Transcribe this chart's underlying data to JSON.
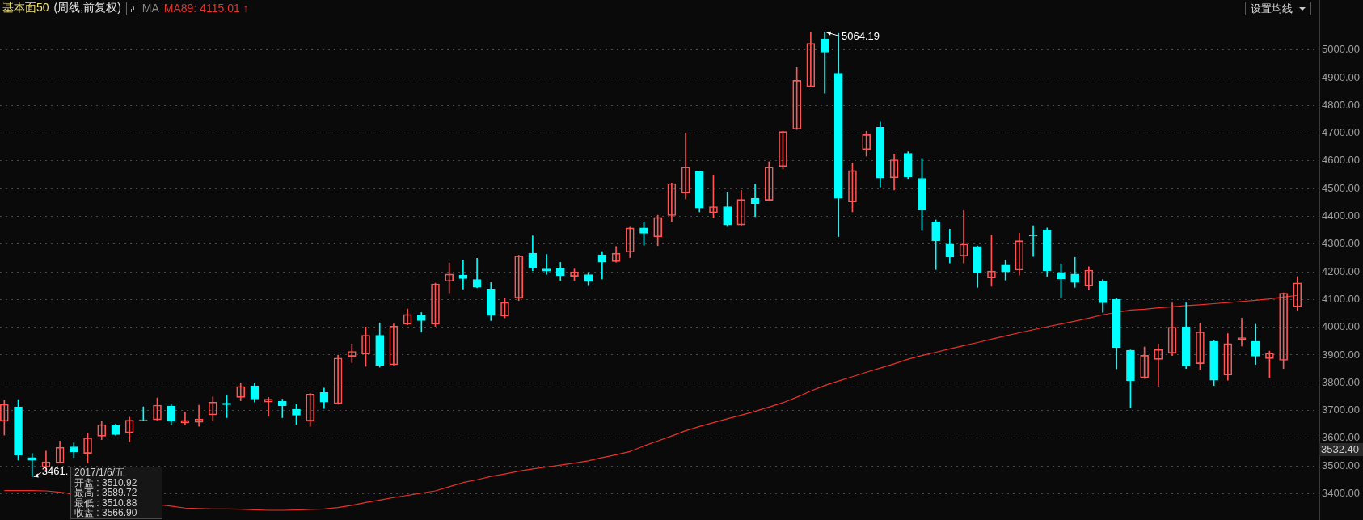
{
  "chart_data": {
    "type": "candlestick",
    "title": "基本面50",
    "subtitle": "(周线,前复权)",
    "legend_title": "MA",
    "legend": "top left",
    "grid": "y",
    "tick_labels": "y",
    "categories": [
      null,
      null,
      null,
      null,
      null,
      null,
      null,
      null,
      null,
      null,
      null,
      null,
      null,
      null,
      null,
      null,
      null,
      null,
      null,
      null,
      null,
      null,
      null,
      null,
      null,
      null,
      null,
      null,
      null,
      null,
      null,
      null,
      null,
      null,
      null,
      null,
      null,
      null,
      null,
      null,
      null,
      null,
      null,
      null,
      null,
      null,
      null,
      null,
      null,
      null,
      null,
      null,
      null,
      null,
      null,
      null,
      null,
      null,
      null,
      null,
      null,
      null,
      null,
      null,
      null,
      null,
      null,
      null,
      null,
      null,
      null,
      null,
      null,
      null,
      null,
      null,
      null,
      null,
      null,
      null,
      null,
      null,
      null,
      null,
      null,
      null,
      null,
      null,
      null,
      null,
      null,
      null,
      null,
      null
    ],
    "ohlc": [
      [
        3661,
        3737,
        3611,
        3722
      ],
      [
        3713,
        3739,
        3521,
        3539
      ],
      [
        3530,
        3545,
        3461,
        3520
      ],
      [
        3496,
        3553,
        3479,
        3515
      ],
      [
        3510.92,
        3589.72,
        3510.88,
        3566.9
      ],
      [
        3569,
        3583,
        3530,
        3551
      ],
      [
        3545,
        3617,
        3511,
        3601
      ],
      [
        3607,
        3661,
        3595,
        3649
      ],
      [
        3648,
        3650,
        3611,
        3613
      ],
      [
        3620,
        3676,
        3587,
        3665
      ],
      [
        3666,
        3713,
        3664,
        3665
      ],
      [
        3666,
        3745,
        3664,
        3719
      ],
      [
        3716,
        3721,
        3649,
        3662
      ],
      [
        3655,
        3695,
        3650,
        3664
      ],
      [
        3657,
        3719,
        3643,
        3669
      ],
      [
        3684,
        3749,
        3662,
        3730
      ],
      [
        3726,
        3755,
        3674,
        3721
      ],
      [
        3747,
        3800,
        3735,
        3787
      ],
      [
        3789,
        3800,
        3730,
        3741
      ],
      [
        3730,
        3747,
        3680,
        3741
      ],
      [
        3733,
        3741,
        3674,
        3717
      ],
      [
        3704,
        3721,
        3650,
        3683
      ],
      [
        3662,
        3762,
        3643,
        3759
      ],
      [
        3765,
        3781,
        3707,
        3730
      ],
      [
        3725,
        3900,
        3722,
        3889
      ],
      [
        3895,
        3940,
        3873,
        3913
      ],
      [
        3904,
        4001,
        3859,
        3971
      ],
      [
        3971,
        4016,
        3856,
        3862
      ],
      [
        3865,
        4012,
        3864,
        4004
      ],
      [
        4011,
        4066,
        4009,
        4046
      ],
      [
        4044,
        4053,
        3982,
        4024
      ],
      [
        4011,
        4159,
        4003,
        4156
      ],
      [
        4166,
        4232,
        4124,
        4192
      ],
      [
        4188,
        4242,
        4138,
        4176
      ],
      [
        4172,
        4249,
        4142,
        4144
      ],
      [
        4138,
        4161,
        4024,
        4042
      ],
      [
        4040,
        4105,
        4034,
        4090
      ],
      [
        4105,
        4260,
        4096,
        4257
      ],
      [
        4267,
        4330,
        4204,
        4215
      ],
      [
        4210,
        4263,
        4191,
        4203
      ],
      [
        4214,
        4234,
        4168,
        4186
      ],
      [
        4184,
        4210,
        4168,
        4200
      ],
      [
        4190,
        4198,
        4150,
        4165
      ],
      [
        4261,
        4273,
        4174,
        4235
      ],
      [
        4237,
        4291,
        4235,
        4267
      ],
      [
        4271,
        4361,
        4251,
        4358
      ],
      [
        4358,
        4380,
        4296,
        4339
      ],
      [
        4326,
        4404,
        4294,
        4396
      ],
      [
        4403,
        4520,
        4382,
        4518
      ],
      [
        4484,
        4701,
        4463,
        4577
      ],
      [
        4561,
        4563,
        4416,
        4430
      ],
      [
        4413,
        4549,
        4395,
        4435
      ],
      [
        4435,
        4485,
        4363,
        4369
      ],
      [
        4369,
        4494,
        4367,
        4461
      ],
      [
        4465,
        4516,
        4399,
        4446
      ],
      [
        4458,
        4597,
        4456,
        4577
      ],
      [
        4580,
        4707,
        4571,
        4706
      ],
      [
        4715,
        4937,
        4713,
        4890
      ],
      [
        4868,
        5063,
        4866,
        5024
      ],
      [
        5040,
        5064.19,
        4844,
        4992
      ],
      [
        4916,
        5060,
        4327,
        4465
      ],
      [
        4452,
        4593,
        4416,
        4565
      ],
      [
        4641,
        4707,
        4617,
        4695
      ],
      [
        4721,
        4740,
        4506,
        4538
      ],
      [
        4539,
        4625,
        4495,
        4604
      ],
      [
        4627,
        4633,
        4536,
        4542
      ],
      [
        4537,
        4609,
        4349,
        4422
      ],
      [
        4380,
        4387,
        4208,
        4311
      ],
      [
        4300,
        4354,
        4232,
        4253
      ],
      [
        4257,
        4421,
        4232,
        4300
      ],
      [
        4291,
        4293,
        4144,
        4197
      ],
      [
        4178,
        4332,
        4148,
        4203
      ],
      [
        4224,
        4242,
        4170,
        4200
      ],
      [
        4206,
        4339,
        4188,
        4312
      ],
      [
        4331,
        4366,
        4255,
        4329
      ],
      [
        4351,
        4358,
        4184,
        4204
      ],
      [
        4198,
        4228,
        4108,
        4174
      ],
      [
        4192,
        4252,
        4144,
        4162
      ],
      [
        4149,
        4218,
        4136,
        4206
      ],
      [
        4164,
        4172,
        4054,
        4088
      ],
      [
        4100,
        4105,
        3850,
        3926
      ],
      [
        3917,
        3918,
        3710,
        3807
      ],
      [
        3818,
        3929,
        3815,
        3899
      ],
      [
        3884,
        3940,
        3787,
        3920
      ],
      [
        3907,
        4088,
        3898,
        4000
      ],
      [
        4002,
        4088,
        3851,
        3861
      ],
      [
        3869,
        4015,
        3848,
        3983
      ],
      [
        3949,
        3953,
        3790,
        3809
      ],
      [
        3827,
        3977,
        3809,
        3941
      ],
      [
        3955,
        4033,
        3932,
        3962
      ],
      [
        3949,
        4011,
        3866,
        3896
      ],
      [
        3887,
        3914,
        3818,
        3907
      ],
      [
        3881,
        4124,
        3851,
        4123
      ],
      [
        4074,
        4183,
        4061,
        4160
      ]
    ],
    "colors": [
      "#ff5555",
      "#00ffff",
      "#00ffff",
      "#ff5555",
      "#ff5555",
      "#00ffff",
      "#ff5555",
      "#ff5555",
      "#00ffff",
      "#ff5555",
      "#00ffff",
      "#ff5555",
      "#00ffff",
      "#ff5555",
      "#ff5555",
      "#ff5555",
      "#00ffff",
      "#ff5555",
      "#00ffff",
      "#ff5555",
      "#00ffff",
      "#00ffff",
      "#ff5555",
      "#00ffff",
      "#ff5555",
      "#ff5555",
      "#ff5555",
      "#00ffff",
      "#ff5555",
      "#ff5555",
      "#00ffff",
      "#ff5555",
      "#ff5555",
      "#00ffff",
      "#00ffff",
      "#00ffff",
      "#ff5555",
      "#ff5555",
      "#00ffff",
      "#00ffff",
      "#00ffff",
      "#ff5555",
      "#00ffff",
      "#00ffff",
      "#ff5555",
      "#ff5555",
      "#00ffff",
      "#ff5555",
      "#ff5555",
      "#ff5555",
      "#00ffff",
      "#ff5555",
      "#00ffff",
      "#ff5555",
      "#00ffff",
      "#ff5555",
      "#ff5555",
      "#ff5555",
      "#ff5555",
      "#00ffff",
      "#00ffff",
      "#ff5555",
      "#ff5555",
      "#00ffff",
      "#ff5555",
      "#00ffff",
      "#00ffff",
      "#00ffff",
      "#00ffff",
      "#ff5555",
      "#00ffff",
      "#ff5555",
      "#00ffff",
      "#ff5555",
      "#00ffff",
      "#00ffff",
      "#00ffff",
      "#00ffff",
      "#ff5555",
      "#00ffff",
      "#00ffff",
      "#00ffff",
      "#ff5555",
      "#ff5555",
      "#ff5555",
      "#00ffff",
      "#ff5555",
      "#00ffff",
      "#ff5555",
      "#ff5555",
      "#00ffff",
      "#ff5555",
      "#ff5555",
      "#ff5555"
    ],
    "series": [
      {
        "type": "line",
        "name": "MA89: 4115.01 ↑",
        "color": "#e8322c",
        "values": [
          3411,
          3411,
          3411,
          3410,
          3405,
          null,
          null,
          null,
          null,
          null,
          null,
          null,
          3355,
          3348,
          3346,
          3345,
          3345,
          3344,
          3342,
          3340,
          3340,
          3341,
          3343,
          3345,
          3350,
          3358,
          3368,
          3377,
          3386,
          3394,
          3402,
          3410,
          3425,
          3440,
          3450,
          3462,
          3471,
          3481,
          3489,
          3496,
          3503,
          3510,
          3518,
          3530,
          3540,
          3552,
          3572,
          3590,
          3608,
          3627,
          3642,
          3656,
          3670,
          3683,
          3697,
          3712,
          3728,
          3748,
          3770,
          3790,
          3806,
          3822,
          3838,
          3853,
          3868,
          3885,
          3898,
          3910,
          3922,
          3934,
          3945,
          3957,
          3969,
          3980,
          3991,
          4002,
          4012,
          4022,
          4033,
          4045,
          null,
          4062,
          4065,
          4070,
          4074,
          4078,
          4081,
          4085,
          4089,
          4093,
          4097,
          4102,
          4109,
          4115
        ]
      }
    ],
    "ylim": [
      3305,
      5180
    ],
    "yticks": [
      {
        "value": 3400,
        "label": "3400.00"
      },
      {
        "value": 3500,
        "label": "3500.00"
      },
      {
        "value": 3600,
        "label": "3600.00"
      },
      {
        "value": 3700,
        "label": "3700.00"
      },
      {
        "value": 3800,
        "label": "3800.00"
      },
      {
        "value": 3900,
        "label": "3900.00"
      },
      {
        "value": 4000,
        "label": "4000.00"
      },
      {
        "value": 4100,
        "label": "4100.00"
      },
      {
        "value": 4200,
        "label": "4200.00"
      },
      {
        "value": 4300,
        "label": "4300.00"
      },
      {
        "value": 4400,
        "label": "4400.00"
      },
      {
        "value": 4500,
        "label": "4500.00"
      },
      {
        "value": 4600,
        "label": "4600.00"
      },
      {
        "value": 4700,
        "label": "4700.00"
      },
      {
        "value": 4800,
        "label": "4800.00"
      },
      {
        "value": 4900,
        "label": "4900.00"
      },
      {
        "value": 5000,
        "label": "5000.00"
      }
    ],
    "annotations": [
      "5064.19",
      "3461.",
      "3532.40",
      "设置均线",
      "2017/1/6/五",
      "开盘 : 3510.92",
      "最高 : 3589.72",
      "最低 : 3510.88",
      "收盘 : 3566.90"
    ]
  }
}
